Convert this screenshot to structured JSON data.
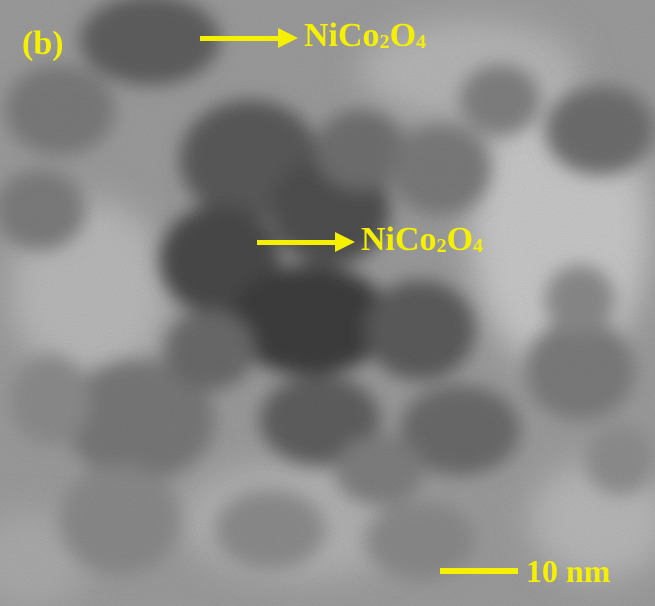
{
  "figure": {
    "panel_label": "(b)",
    "annotations": [
      {
        "element": "Ni",
        "cobalt": "Co",
        "cobalt_count": "2",
        "oxygen": "O",
        "oxygen_count": "4"
      },
      {
        "element": "Ni",
        "cobalt": "Co",
        "cobalt_count": "2",
        "oxygen": "O",
        "oxygen_count": "4"
      }
    ],
    "scale_bar": {
      "label": "10 nm"
    },
    "colors": {
      "annotation": "#f5f000",
      "background": "#9a9a9a"
    },
    "icons": [
      "arrow-right-icon",
      "arrow-right-icon"
    ]
  }
}
